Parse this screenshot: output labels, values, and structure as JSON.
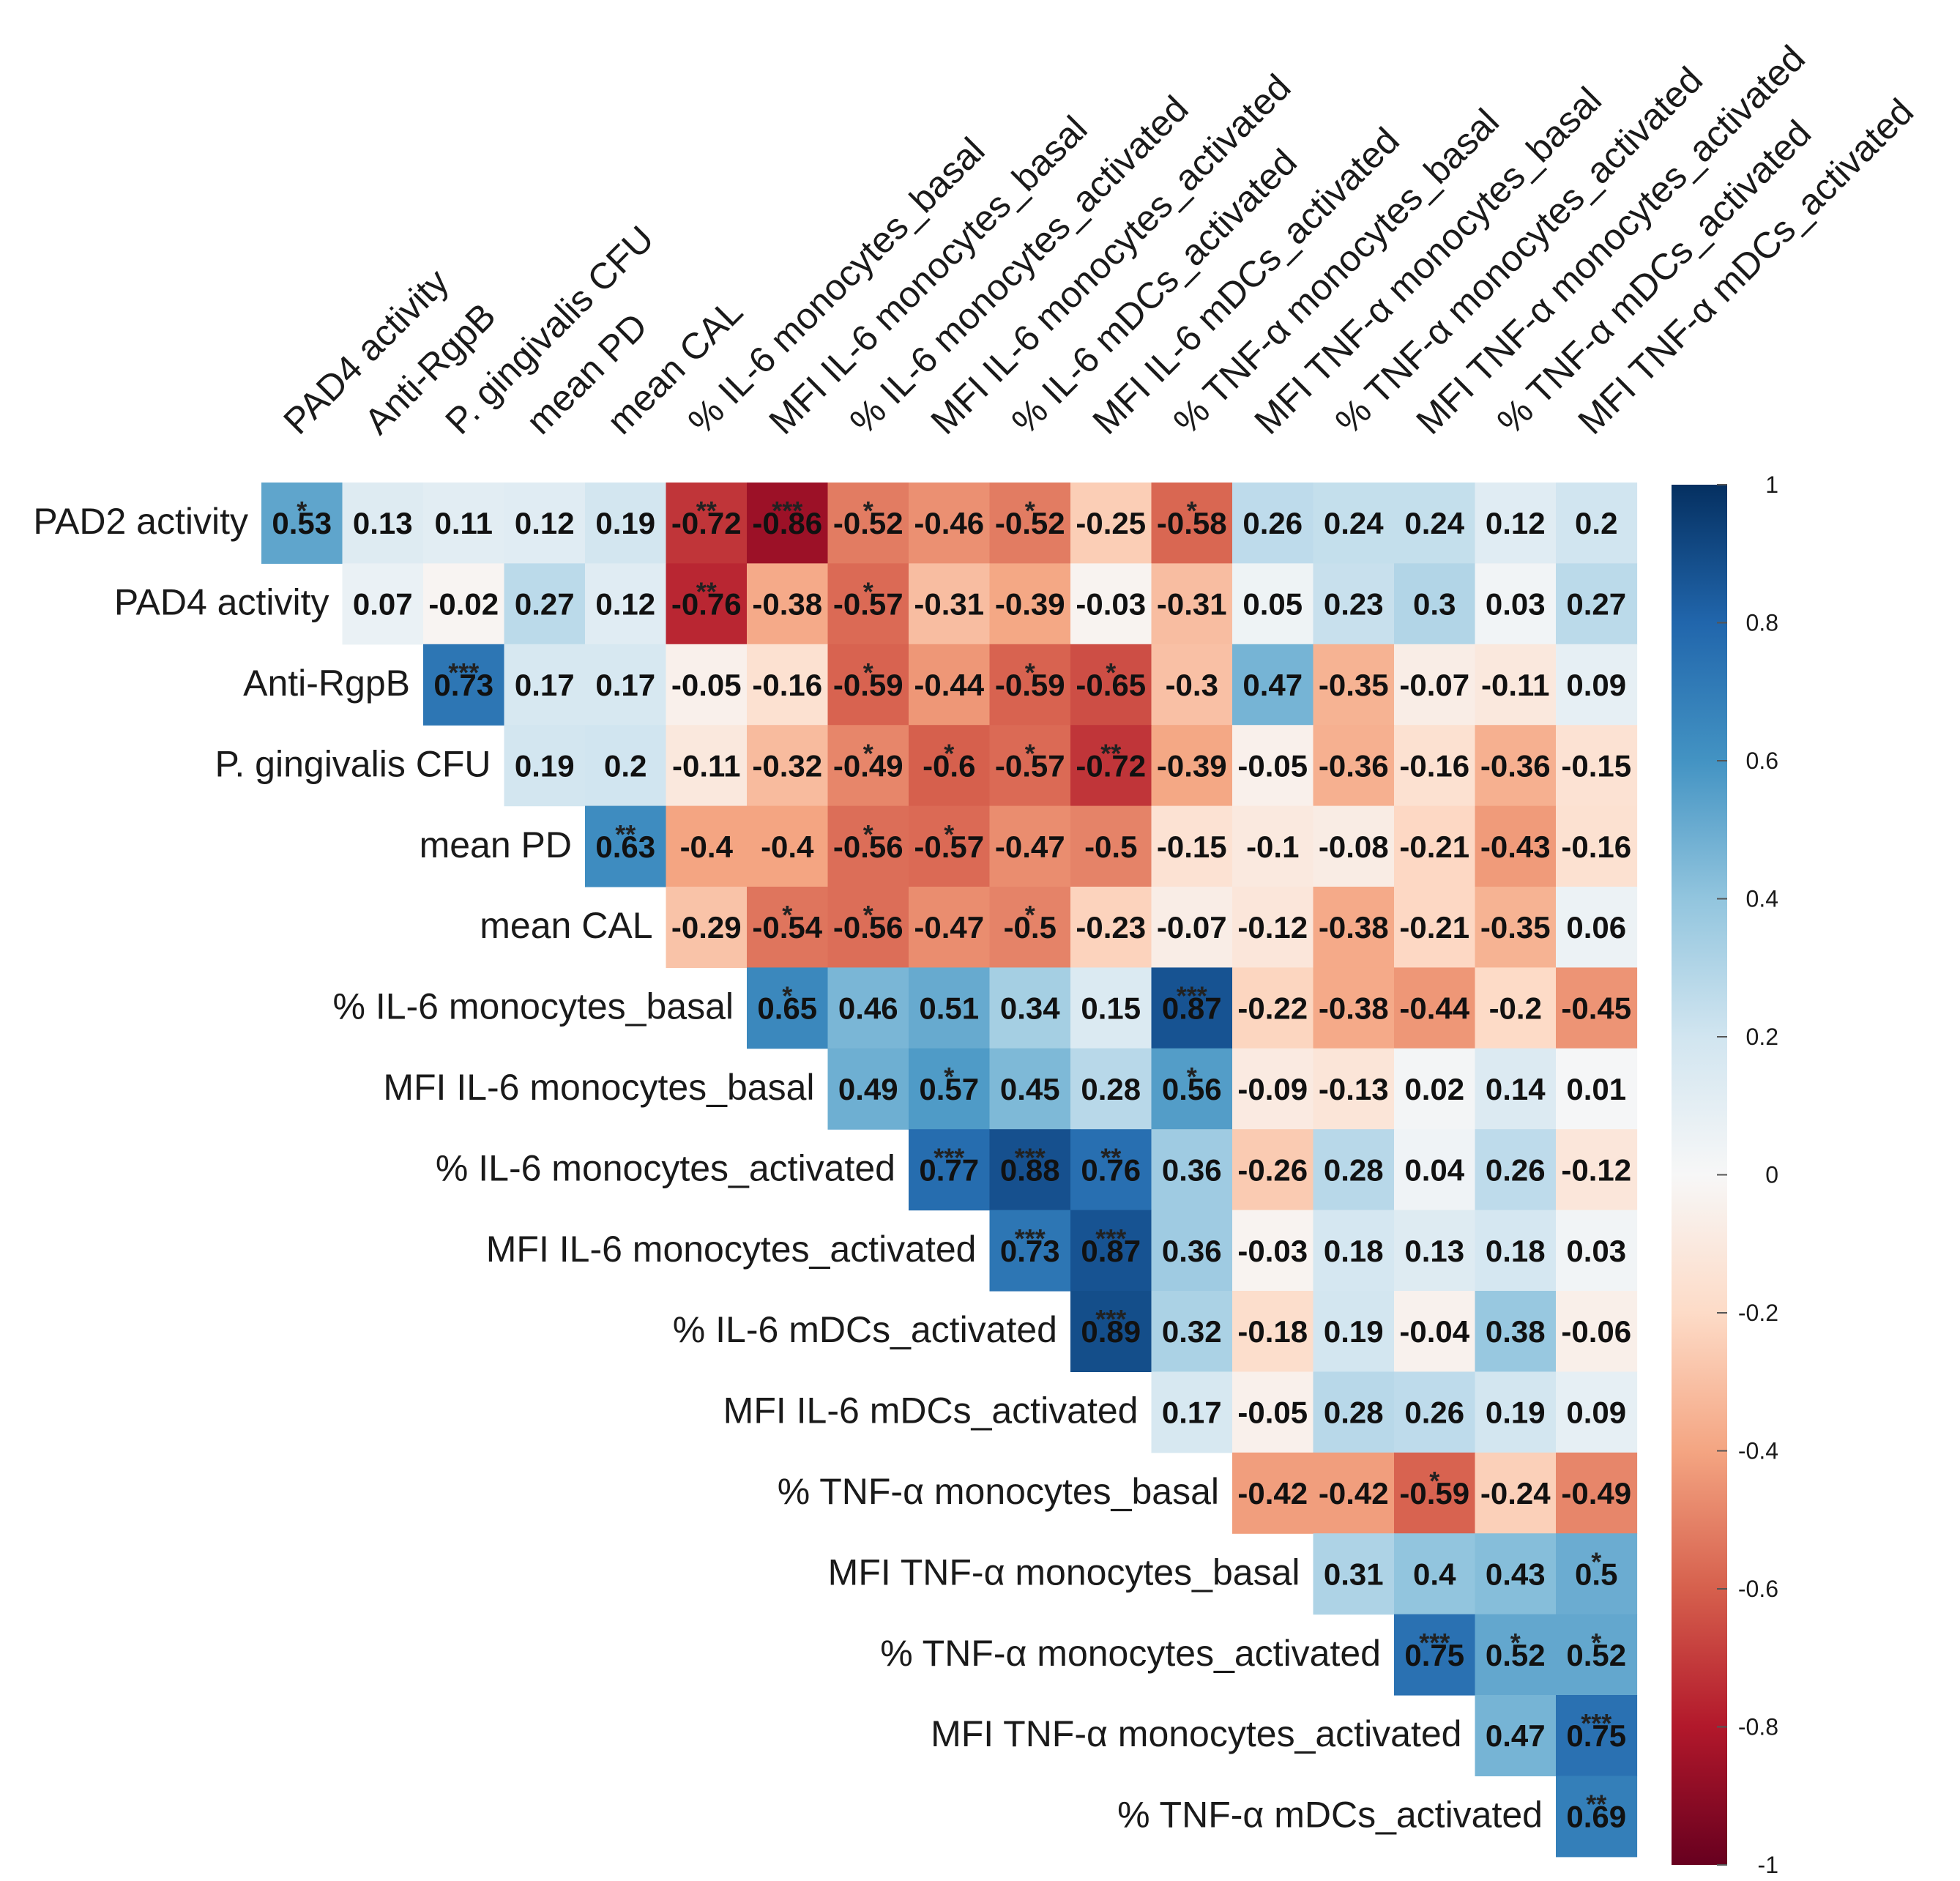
{
  "chart_data": {
    "type": "heatmap",
    "title": "",
    "row_labels": [
      "PAD2 activity",
      "PAD4 activity",
      "Anti-RgpB",
      "P. gingivalis CFU",
      "mean PD",
      "mean CAL",
      "% IL-6 monocytes_basal",
      "MFI IL-6 monocytes_basal",
      "% IL-6 monocytes_activated",
      "MFI IL-6 monocytes_activated",
      "% IL-6 mDCs_activated",
      "MFI IL-6 mDCs_activated",
      "% TNF-α monocytes_basal",
      "MFI TNF-α monocytes_basal",
      "% TNF-α monocytes_activated",
      "MFI TNF-α monocytes_activated",
      "% TNF-α mDCs_activated"
    ],
    "col_labels": [
      "PAD4 activity",
      "Anti-RgpB",
      "P. gingivalis CFU",
      "mean PD",
      "mean CAL",
      "% IL-6 monocytes_basal",
      "MFI IL-6 monocytes_basal",
      "% IL-6 monocytes_activated",
      "MFI IL-6 monocytes_activated",
      "% IL-6 mDCs_activated",
      "MFI IL-6 mDCs_activated",
      "% TNF-α monocytes_basal",
      "MFI TNF-α monocytes_basal",
      "% TNF-α monocytes_activated",
      "MFI TNF-α monocytes_activated",
      "% TNF-α mDCs_activated",
      "MFI TNF-α mDCs_activated"
    ],
    "values": [
      [
        "0.53",
        "0.13",
        "0.11",
        "0.12",
        "0.19",
        "-0.72",
        "-0.86",
        "-0.52",
        "-0.46",
        "-0.52",
        "-0.25",
        "-0.58",
        "0.26",
        "0.24",
        "0.24",
        "0.12",
        "0.2"
      ],
      [
        "0.07",
        "-0.02",
        "0.27",
        "0.12",
        "-0.76",
        "-0.38",
        "-0.57",
        "-0.31",
        "-0.39",
        "-0.03",
        "-0.31",
        "0.05",
        "0.23",
        "0.3",
        "0.03",
        "0.27"
      ],
      [
        "0.73",
        "0.17",
        "0.17",
        "-0.05",
        "-0.16",
        "-0.59",
        "-0.44",
        "-0.59",
        "-0.65",
        "-0.3",
        "0.47",
        "-0.35",
        "-0.07",
        "-0.11",
        "0.09"
      ],
      [
        "0.19",
        "0.2",
        "-0.11",
        "-0.32",
        "-0.49",
        "-0.6",
        "-0.57",
        "-0.72",
        "-0.39",
        "-0.05",
        "-0.36",
        "-0.16",
        "-0.36",
        "-0.15"
      ],
      [
        "0.63",
        "-0.4",
        "-0.4",
        "-0.56",
        "-0.57",
        "-0.47",
        "-0.5",
        "-0.15",
        "-0.1",
        "-0.08",
        "-0.21",
        "-0.43",
        "-0.16"
      ],
      [
        "-0.29",
        "-0.54",
        "-0.56",
        "-0.47",
        "-0.5",
        "-0.23",
        "-0.07",
        "-0.12",
        "-0.38",
        "-0.21",
        "-0.35",
        "0.06"
      ],
      [
        "0.65",
        "0.46",
        "0.51",
        "0.34",
        "0.15",
        "0.87",
        "-0.22",
        "-0.38",
        "-0.44",
        "-0.2",
        "-0.45"
      ],
      [
        "0.49",
        "0.57",
        "0.45",
        "0.28",
        "0.56",
        "-0.09",
        "-0.13",
        "0.02",
        "0.14",
        "0.01"
      ],
      [
        "0.77",
        "0.88",
        "0.76",
        "0.36",
        "-0.26",
        "0.28",
        "0.04",
        "0.26",
        "-0.12"
      ],
      [
        "0.73",
        "0.87",
        "0.36",
        "-0.03",
        "0.18",
        "0.13",
        "0.18",
        "0.03"
      ],
      [
        "0.89",
        "0.32",
        "-0.18",
        "0.19",
        "-0.04",
        "0.38",
        "-0.06"
      ],
      [
        "0.17",
        "-0.05",
        "0.28",
        "0.26",
        "0.19",
        "0.09"
      ],
      [
        "-0.42",
        "-0.42",
        "-0.59",
        "-0.24",
        "-0.49"
      ],
      [
        "0.31",
        "0.4",
        "0.43",
        "0.5"
      ],
      [
        "0.75",
        "0.52",
        "0.52"
      ],
      [
        "0.47",
        "0.75"
      ],
      [
        "0.69"
      ]
    ],
    "significance": [
      [
        "*",
        "",
        "",
        "",
        "",
        "**",
        "***",
        "*",
        "",
        "*",
        "",
        "*",
        "",
        "",
        "",
        "",
        ""
      ],
      [
        "",
        "",
        "",
        "",
        "**",
        "",
        "*",
        "",
        "",
        "",
        "",
        "",
        "",
        "",
        "",
        ""
      ],
      [
        "***",
        "",
        "",
        "",
        "",
        "*",
        "",
        "*",
        "*",
        "",
        "",
        "",
        "",
        "",
        ""
      ],
      [
        "",
        "",
        "",
        "",
        "*",
        "*",
        "*",
        "**",
        "",
        "",
        "",
        "",
        "",
        ""
      ],
      [
        "**",
        "",
        "",
        "*",
        "*",
        "",
        "",
        "",
        "",
        "",
        "",
        "",
        ""
      ],
      [
        "",
        "*",
        "*",
        "",
        "*",
        "",
        "",
        "",
        "",
        "",
        "",
        ""
      ],
      [
        "*",
        "",
        "",
        "",
        "",
        "***",
        "",
        "",
        "",
        "",
        ""
      ],
      [
        "",
        "*",
        "",
        "",
        "*",
        "",
        "",
        "",
        "",
        ""
      ],
      [
        "***",
        "***",
        "**",
        "",
        "",
        "",
        "",
        "",
        ""
      ],
      [
        "***",
        "***",
        "",
        "",
        "",
        "",
        "",
        ""
      ],
      [
        "***",
        "",
        "",
        "",
        "",
        "",
        ""
      ],
      [
        "",
        "",
        "",
        "",
        "",
        ""
      ],
      [
        "",
        "",
        "*",
        "",
        ""
      ],
      [
        "",
        "",
        "",
        "*"
      ],
      [
        "***",
        "*",
        "*"
      ],
      [
        "",
        "***"
      ],
      [
        "**"
      ]
    ],
    "colorbar": {
      "range": [
        -1,
        1
      ],
      "ticks": [
        "1",
        "0.8",
        "0.6",
        "0.4",
        "0.2",
        "0",
        "-0.2",
        "-0.4",
        "-0.6",
        "-0.8",
        "-1"
      ]
    },
    "colors": {
      "negative_strong": "#67001f",
      "neutral": "#f7f7f7",
      "positive_strong": "#053061"
    }
  }
}
